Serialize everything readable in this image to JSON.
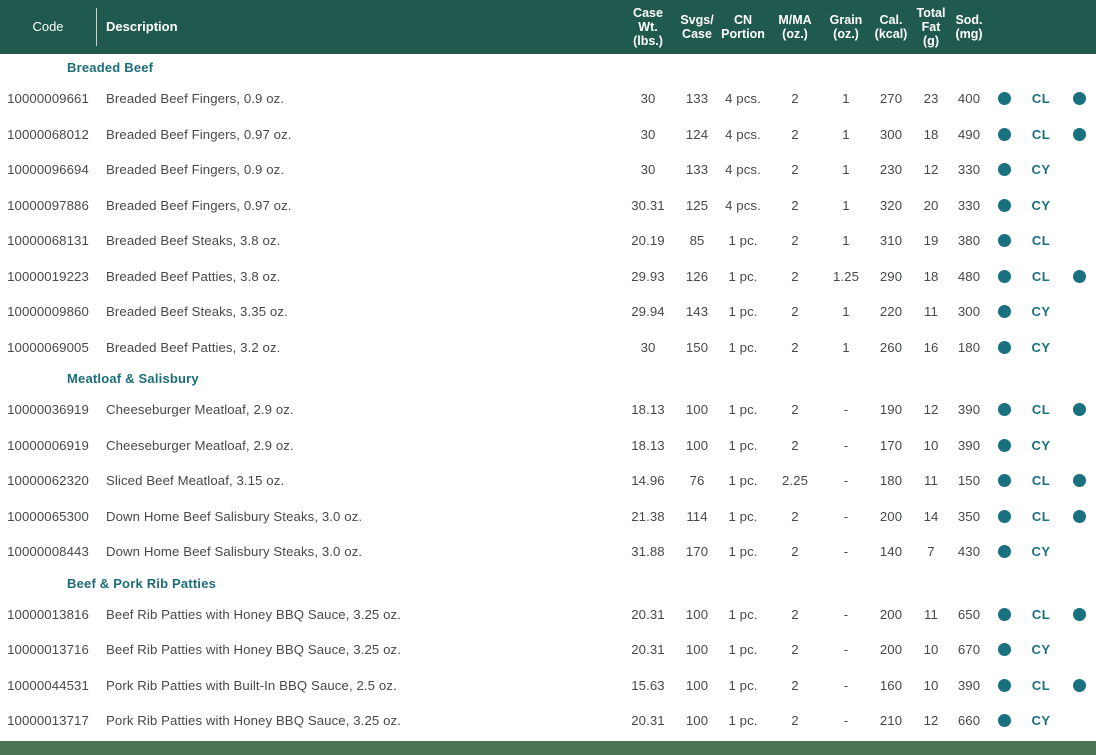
{
  "colors": {
    "header_bg": "#205a4e",
    "header_text": "#ffffff",
    "body_text": "#45494b",
    "section_title": "#1c6d78",
    "accent_teal": "#19707e",
    "footer_bar": "#4a7453"
  },
  "header": {
    "code": "Code",
    "description": "Description",
    "case_wt": "Case\nWt.\n(lbs.)",
    "svgs_case": "Svgs/\nCase",
    "cn_portion": "CN\nPortion",
    "mma": "M/MA\n(oz.)",
    "grain": "Grain\n(oz.)",
    "cal": "Cal.\n(kcal)",
    "total_fat": "Total\nFat\n(g)",
    "sod": "Sod.\n(mg)"
  },
  "icons": {
    "left_dot": "filled-circle",
    "right_dot": "filled-circle"
  },
  "sections": [
    {
      "title": "Breaded Beef",
      "rows": [
        {
          "code": "10000009661",
          "description": "Breaded Beef Fingers, 0.9 oz.",
          "case_wt": "30",
          "svgs_case": "133",
          "cn_portion": "4 pcs.",
          "mma_oz": "2",
          "grain_oz": "1",
          "cal_kcal": "270",
          "total_fat_g": "23",
          "sod_mg": "400",
          "dot_left": true,
          "badge": "CL",
          "dot_right": true
        },
        {
          "code": "10000068012",
          "description": "Breaded Beef Fingers, 0.97 oz.",
          "case_wt": "30",
          "svgs_case": "124",
          "cn_portion": "4 pcs.",
          "mma_oz": "2",
          "grain_oz": "1",
          "cal_kcal": "300",
          "total_fat_g": "18",
          "sod_mg": "490",
          "dot_left": true,
          "badge": "CL",
          "dot_right": true
        },
        {
          "code": "10000096694",
          "description": "Breaded Beef Fingers, 0.9 oz.",
          "case_wt": "30",
          "svgs_case": "133",
          "cn_portion": "4 pcs.",
          "mma_oz": "2",
          "grain_oz": "1",
          "cal_kcal": "230",
          "total_fat_g": "12",
          "sod_mg": "330",
          "dot_left": true,
          "badge": "CY",
          "dot_right": false
        },
        {
          "code": "10000097886",
          "description": "Breaded Beef Fingers, 0.97 oz.",
          "case_wt": "30.31",
          "svgs_case": "125",
          "cn_portion": "4 pcs.",
          "mma_oz": "2",
          "grain_oz": "1",
          "cal_kcal": "320",
          "total_fat_g": "20",
          "sod_mg": "330",
          "dot_left": true,
          "badge": "CY",
          "dot_right": false
        },
        {
          "code": "10000068131",
          "description": "Breaded Beef Steaks, 3.8 oz.",
          "case_wt": "20.19",
          "svgs_case": "85",
          "cn_portion": "1 pc.",
          "mma_oz": "2",
          "grain_oz": "1",
          "cal_kcal": "310",
          "total_fat_g": "19",
          "sod_mg": "380",
          "dot_left": true,
          "badge": "CL",
          "dot_right": false
        },
        {
          "code": "10000019223",
          "description": "Breaded Beef Patties, 3.8 oz.",
          "case_wt": "29.93",
          "svgs_case": "126",
          "cn_portion": "1 pc.",
          "mma_oz": "2",
          "grain_oz": "1.25",
          "cal_kcal": "290",
          "total_fat_g": "18",
          "sod_mg": "480",
          "dot_left": true,
          "badge": "CL",
          "dot_right": true
        },
        {
          "code": "10000009860",
          "description": "Breaded Beef Steaks, 3.35 oz.",
          "case_wt": "29.94",
          "svgs_case": "143",
          "cn_portion": "1 pc.",
          "mma_oz": "2",
          "grain_oz": "1",
          "cal_kcal": "220",
          "total_fat_g": "11",
          "sod_mg": "300",
          "dot_left": true,
          "badge": "CY",
          "dot_right": false
        },
        {
          "code": "10000069005",
          "description": "Breaded Beef Patties, 3.2 oz.",
          "case_wt": "30",
          "svgs_case": "150",
          "cn_portion": "1 pc.",
          "mma_oz": "2",
          "grain_oz": "1",
          "cal_kcal": "260",
          "total_fat_g": "16",
          "sod_mg": "180",
          "dot_left": true,
          "badge": "CY",
          "dot_right": false
        }
      ]
    },
    {
      "title": "Meatloaf & Salisbury",
      "rows": [
        {
          "code": "10000036919",
          "description": "Cheeseburger Meatloaf, 2.9 oz.",
          "case_wt": "18.13",
          "svgs_case": "100",
          "cn_portion": "1 pc.",
          "mma_oz": "2",
          "grain_oz": "-",
          "cal_kcal": "190",
          "total_fat_g": "12",
          "sod_mg": "390",
          "dot_left": true,
          "badge": "CL",
          "dot_right": true
        },
        {
          "code": "10000006919",
          "description": "Cheeseburger Meatloaf, 2.9 oz.",
          "case_wt": "18.13",
          "svgs_case": "100",
          "cn_portion": "1 pc.",
          "mma_oz": "2",
          "grain_oz": "-",
          "cal_kcal": "170",
          "total_fat_g": "10",
          "sod_mg": "390",
          "dot_left": true,
          "badge": "CY",
          "dot_right": false
        },
        {
          "code": "10000062320",
          "description": "Sliced Beef Meatloaf,  3.15 oz.",
          "case_wt": "14.96",
          "svgs_case": "76",
          "cn_portion": "1 pc.",
          "mma_oz": "2.25",
          "grain_oz": "-",
          "cal_kcal": "180",
          "total_fat_g": "11",
          "sod_mg": "150",
          "dot_left": true,
          "badge": "CL",
          "dot_right": true
        },
        {
          "code": "10000065300",
          "description": "Down Home Beef Salisbury Steaks, 3.0 oz.",
          "case_wt": "21.38",
          "svgs_case": "114",
          "cn_portion": "1 pc.",
          "mma_oz": "2",
          "grain_oz": "-",
          "cal_kcal": "200",
          "total_fat_g": "14",
          "sod_mg": "350",
          "dot_left": true,
          "badge": "CL",
          "dot_right": true
        },
        {
          "code": "10000008443",
          "description": "Down Home Beef Salisbury Steaks, 3.0 oz.",
          "case_wt": "31.88",
          "svgs_case": "170",
          "cn_portion": "1 pc.",
          "mma_oz": "2",
          "grain_oz": "-",
          "cal_kcal": "140",
          "total_fat_g": "7",
          "sod_mg": "430",
          "dot_left": true,
          "badge": "CY",
          "dot_right": false
        }
      ]
    },
    {
      "title": "Beef & Pork Rib Patties",
      "rows": [
        {
          "code": "10000013816",
          "description": "Beef Rib Patties with Honey BBQ Sauce, 3.25 oz.",
          "case_wt": "20.31",
          "svgs_case": "100",
          "cn_portion": "1 pc.",
          "mma_oz": "2",
          "grain_oz": "-",
          "cal_kcal": "200",
          "total_fat_g": "11",
          "sod_mg": "650",
          "dot_left": true,
          "badge": "CL",
          "dot_right": true
        },
        {
          "code": "10000013716",
          "description": "Beef Rib Patties with Honey BBQ Sauce, 3.25 oz.",
          "case_wt": "20.31",
          "svgs_case": "100",
          "cn_portion": "1 pc.",
          "mma_oz": "2",
          "grain_oz": "-",
          "cal_kcal": "200",
          "total_fat_g": "10",
          "sod_mg": "670",
          "dot_left": true,
          "badge": "CY",
          "dot_right": false
        },
        {
          "code": "10000044531",
          "description": "Pork Rib Patties with Built-In BBQ Sauce, 2.5 oz.",
          "case_wt": "15.63",
          "svgs_case": "100",
          "cn_portion": "1 pc.",
          "mma_oz": "2",
          "grain_oz": "-",
          "cal_kcal": "160",
          "total_fat_g": "10",
          "sod_mg": "390",
          "dot_left": true,
          "badge": "CL",
          "dot_right": true
        },
        {
          "code": "10000013717",
          "description": "Pork Rib Patties with Honey BBQ Sauce, 3.25 oz.",
          "case_wt": "20.31",
          "svgs_case": "100",
          "cn_portion": "1 pc.",
          "mma_oz": "2",
          "grain_oz": "-",
          "cal_kcal": "210",
          "total_fat_g": "12",
          "sod_mg": "660",
          "dot_left": true,
          "badge": "CY",
          "dot_right": false
        }
      ]
    }
  ]
}
